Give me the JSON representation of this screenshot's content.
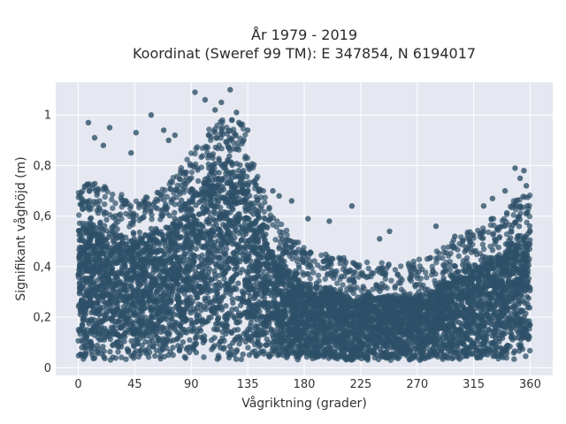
{
  "chart_data": {
    "type": "scatter",
    "title": "År 1979 - 2019",
    "subtitle": "Koordinat (Sweref 99 TM): E 347854, N 6194017",
    "xlabel": "Vågriktning (grader)",
    "ylabel": "Signifikant våghöjd (m)",
    "xlim": [
      -18,
      378
    ],
    "ylim": [
      -0.03,
      1.13
    ],
    "x_ticks": [
      0,
      45,
      90,
      135,
      180,
      225,
      270,
      315,
      360
    ],
    "y_ticks": [
      0,
      0.2,
      0.4,
      0.6,
      0.8,
      1
    ],
    "y_tick_labels": [
      "0",
      "0,2",
      "0,4",
      "0,6",
      "0,8",
      "1"
    ],
    "grid": true,
    "marker_color": "#2e5068",
    "plot_bg": "#e5e8f0",
    "envelope": {
      "x": [
        0,
        10,
        20,
        30,
        40,
        50,
        60,
        70,
        80,
        90,
        100,
        110,
        120,
        130,
        140,
        150,
        160,
        170,
        180,
        190,
        200,
        210,
        220,
        230,
        240,
        250,
        260,
        270,
        280,
        290,
        300,
        310,
        320,
        330,
        340,
        350,
        360
      ],
      "y_max": [
        0.6,
        0.62,
        0.6,
        0.58,
        0.55,
        0.55,
        0.57,
        0.6,
        0.66,
        0.73,
        0.8,
        0.86,
        0.87,
        0.86,
        0.7,
        0.55,
        0.46,
        0.4,
        0.36,
        0.34,
        0.33,
        0.32,
        0.3,
        0.3,
        0.3,
        0.3,
        0.3,
        0.31,
        0.33,
        0.36,
        0.39,
        0.42,
        0.45,
        0.48,
        0.52,
        0.56,
        0.58
      ],
      "y_min": 0.03
    },
    "outliers": [
      {
        "x": 8,
        "y": 0.97
      },
      {
        "x": 13,
        "y": 0.91
      },
      {
        "x": 25,
        "y": 0.95
      },
      {
        "x": 20,
        "y": 0.88
      },
      {
        "x": 42,
        "y": 0.85
      },
      {
        "x": 46,
        "y": 0.93
      },
      {
        "x": 58,
        "y": 1.0
      },
      {
        "x": 68,
        "y": 0.94
      },
      {
        "x": 72,
        "y": 0.9
      },
      {
        "x": 77,
        "y": 0.92
      },
      {
        "x": 93,
        "y": 1.09
      },
      {
        "x": 101,
        "y": 1.06
      },
      {
        "x": 109,
        "y": 1.02
      },
      {
        "x": 114,
        "y": 1.05
      },
      {
        "x": 121,
        "y": 1.1
      },
      {
        "x": 126,
        "y": 1.01
      },
      {
        "x": 128,
        "y": 0.97
      },
      {
        "x": 135,
        "y": 0.94
      },
      {
        "x": 155,
        "y": 0.7
      },
      {
        "x": 160,
        "y": 0.68
      },
      {
        "x": 170,
        "y": 0.66
      },
      {
        "x": 183,
        "y": 0.59
      },
      {
        "x": 200,
        "y": 0.58
      },
      {
        "x": 218,
        "y": 0.64
      },
      {
        "x": 248,
        "y": 0.54
      },
      {
        "x": 240,
        "y": 0.51
      },
      {
        "x": 285,
        "y": 0.56
      },
      {
        "x": 300,
        "y": 0.52
      },
      {
        "x": 312,
        "y": 0.5
      },
      {
        "x": 323,
        "y": 0.64
      },
      {
        "x": 330,
        "y": 0.67
      },
      {
        "x": 340,
        "y": 0.7
      },
      {
        "x": 348,
        "y": 0.79
      },
      {
        "x": 355,
        "y": 0.78
      },
      {
        "x": 357,
        "y": 0.72
      },
      {
        "x": 352,
        "y": 0.75
      }
    ]
  }
}
